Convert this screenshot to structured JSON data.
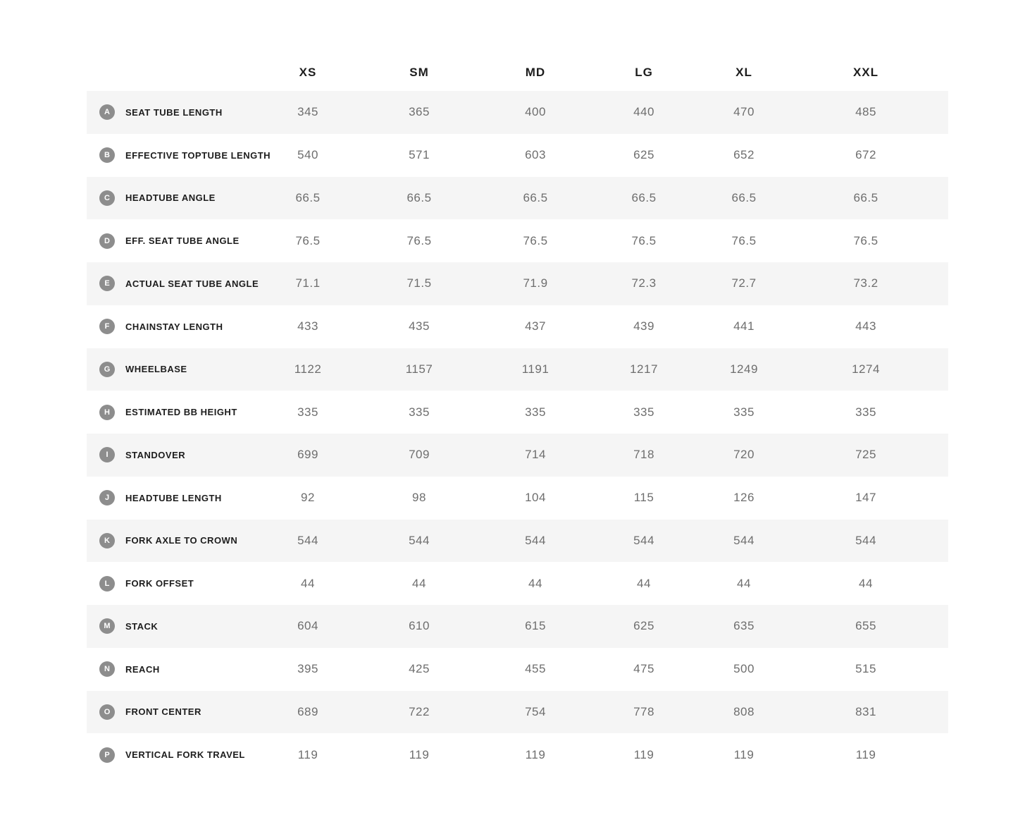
{
  "table": {
    "columns": [
      "XS",
      "SM",
      "MD",
      "LG",
      "XL",
      "XXL"
    ],
    "rows": [
      {
        "letter": "A",
        "label": "SEAT TUBE LENGTH",
        "values": [
          "345",
          "365",
          "400",
          "440",
          "470",
          "485"
        ]
      },
      {
        "letter": "B",
        "label": "EFFECTIVE TOPTUBE LENGTH",
        "values": [
          "540",
          "571",
          "603",
          "625",
          "652",
          "672"
        ]
      },
      {
        "letter": "C",
        "label": "HEADTUBE ANGLE",
        "values": [
          "66.5",
          "66.5",
          "66.5",
          "66.5",
          "66.5",
          "66.5"
        ]
      },
      {
        "letter": "D",
        "label": "EFF. SEAT TUBE ANGLE",
        "values": [
          "76.5",
          "76.5",
          "76.5",
          "76.5",
          "76.5",
          "76.5"
        ]
      },
      {
        "letter": "E",
        "label": "ACTUAL SEAT TUBE ANGLE",
        "values": [
          "71.1",
          "71.5",
          "71.9",
          "72.3",
          "72.7",
          "73.2"
        ]
      },
      {
        "letter": "F",
        "label": "CHAINSTAY LENGTH",
        "values": [
          "433",
          "435",
          "437",
          "439",
          "441",
          "443"
        ]
      },
      {
        "letter": "G",
        "label": "WHEELBASE",
        "values": [
          "1122",
          "1157",
          "1191",
          "1217",
          "1249",
          "1274"
        ]
      },
      {
        "letter": "H",
        "label": "ESTIMATED BB HEIGHT",
        "values": [
          "335",
          "335",
          "335",
          "335",
          "335",
          "335"
        ]
      },
      {
        "letter": "I",
        "label": "STANDOVER",
        "values": [
          "699",
          "709",
          "714",
          "718",
          "720",
          "725"
        ]
      },
      {
        "letter": "J",
        "label": "HEADTUBE LENGTH",
        "values": [
          "92",
          "98",
          "104",
          "115",
          "126",
          "147"
        ]
      },
      {
        "letter": "K",
        "label": "FORK AXLE TO CROWN",
        "values": [
          "544",
          "544",
          "544",
          "544",
          "544",
          "544"
        ]
      },
      {
        "letter": "L",
        "label": "FORK OFFSET",
        "values": [
          "44",
          "44",
          "44",
          "44",
          "44",
          "44"
        ]
      },
      {
        "letter": "M",
        "label": "STACK",
        "values": [
          "604",
          "610",
          "615",
          "625",
          "635",
          "655"
        ]
      },
      {
        "letter": "N",
        "label": "REACH",
        "values": [
          "395",
          "425",
          "455",
          "475",
          "500",
          "515"
        ]
      },
      {
        "letter": "O",
        "label": "FRONT CENTER",
        "values": [
          "689",
          "722",
          "754",
          "778",
          "808",
          "831"
        ]
      },
      {
        "letter": "P",
        "label": "VERTICAL FORK TRAVEL",
        "values": [
          "119",
          "119",
          "119",
          "119",
          "119",
          "119"
        ]
      }
    ]
  },
  "colors": {
    "row_stripe": "#f5f5f5",
    "badge": "#8d8d8d",
    "label_text": "#1d1d1d",
    "value_text": "#6e6e6e"
  }
}
